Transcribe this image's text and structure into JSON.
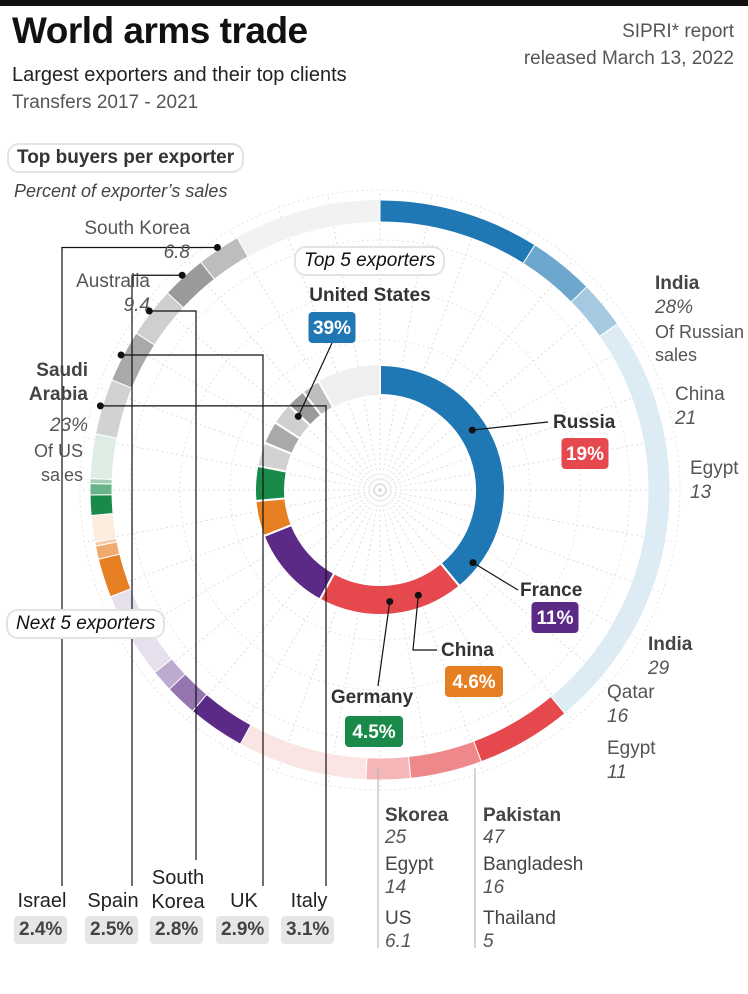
{
  "header": {
    "title": "World arms trade",
    "subtitle": "Largest exporters and their top clients",
    "period": "Transfers 2017 - 2021",
    "source_line1": "SIPRI* report",
    "source_line2": "released March 13, 2022"
  },
  "labels": {
    "top_buyers": "Top buyers per exporter",
    "percent_note": "Percent of exporter’s sales",
    "top5": "Top 5 exporters",
    "next5": "Next 5 exporters"
  },
  "colors": {
    "us": "#1f77b4",
    "russia": "#e5484d",
    "france": "#5b2a86",
    "china": "#e67e22",
    "germany": "#1a8a4a",
    "others": "#9e9e9e"
  },
  "chart_data": {
    "type": "donut",
    "inner_ring": {
      "title": "Top 5 exporters",
      "categories": [
        "United States",
        "Russia",
        "France",
        "China",
        "Germany",
        "Italy",
        "UK",
        "South Korea",
        "Spain",
        "Israel"
      ],
      "values": [
        39,
        19,
        11,
        4.6,
        4.5,
        3.1,
        2.9,
        2.8,
        2.5,
        2.4
      ],
      "value_labels": [
        "39%",
        "19%",
        "11%",
        "4.6%",
        "4.5%",
        "3.1%",
        "2.9%",
        "2.8%",
        "2.5%",
        "2.4%"
      ]
    },
    "outer_ring": {
      "title": "Top buyers per exporter",
      "unit": "Percent of exporter’s sales",
      "exporters": [
        {
          "name": "United States",
          "buyers": [
            {
              "name": "Saudi Arabia",
              "value": 23,
              "note": "Of US sales"
            },
            {
              "name": "Australia",
              "value": 9.4
            },
            {
              "name": "South Korea",
              "value": 6.8
            }
          ]
        },
        {
          "name": "Russia",
          "buyers": [
            {
              "name": "India",
              "value": 28,
              "note": "Of Russian sales"
            },
            {
              "name": "China",
              "value": 21
            },
            {
              "name": "Egypt",
              "value": 13
            }
          ]
        },
        {
          "name": "France",
          "buyers": [
            {
              "name": "India",
              "value": 29
            },
            {
              "name": "Qatar",
              "value": 16
            },
            {
              "name": "Egypt",
              "value": 11
            }
          ]
        },
        {
          "name": "China",
          "buyers": [
            {
              "name": "Pakistan",
              "value": 47
            },
            {
              "name": "Bangladesh",
              "value": 16
            },
            {
              "name": "Thailand",
              "value": 5
            }
          ]
        },
        {
          "name": "Germany",
          "buyers": [
            {
              "name": "Skorea",
              "value": 25
            },
            {
              "name": "Egypt",
              "value": 14
            },
            {
              "name": "US",
              "value": 6.1
            }
          ]
        }
      ]
    },
    "next5": [
      {
        "name": "Israel",
        "value": "2.4%"
      },
      {
        "name": "Spain",
        "value": "2.5%"
      },
      {
        "name": "South Korea",
        "value": "2.8%"
      },
      {
        "name": "UK",
        "value": "2.9%"
      },
      {
        "name": "Italy",
        "value": "3.1%"
      }
    ]
  }
}
